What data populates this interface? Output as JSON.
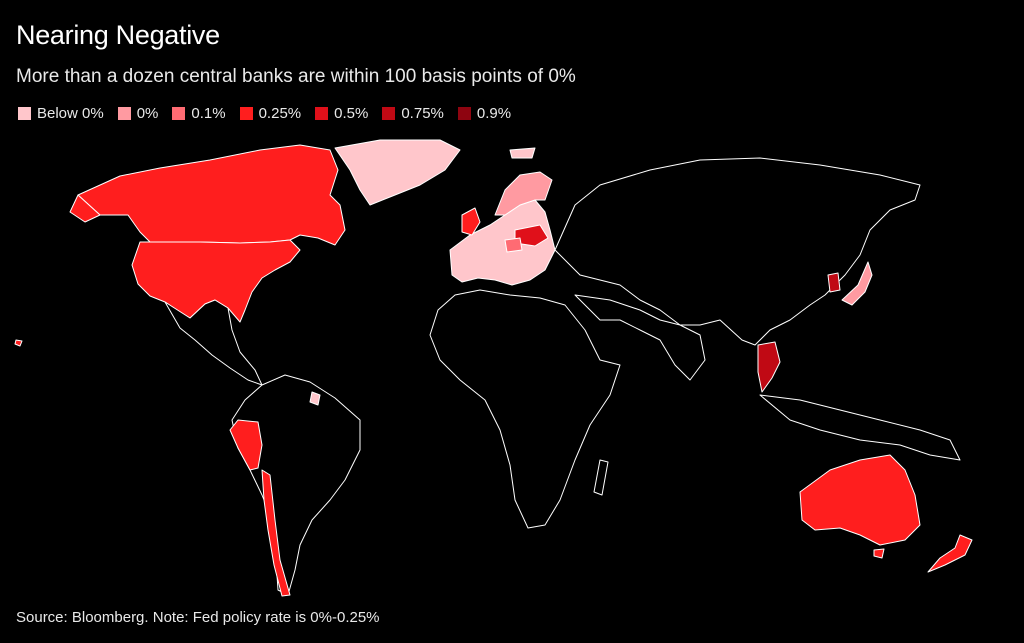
{
  "title": "Nearing Negative",
  "subtitle": "More than a dozen central banks are within 100 basis points of 0%",
  "legend": [
    {
      "label": "Below 0%",
      "color": "#ffc6cb"
    },
    {
      "label": "0%",
      "color": "#ff9aa1"
    },
    {
      "label": "0.1%",
      "color": "#ff6b73"
    },
    {
      "label": "0.25%",
      "color": "#ff1e1e"
    },
    {
      "label": "0.5%",
      "color": "#e0101a"
    },
    {
      "label": "0.75%",
      "color": "#c00914"
    },
    {
      "label": "0.9%",
      "color": "#8e0410"
    }
  ],
  "source": "Source: Bloomberg. Note: Fed policy rate is 0%-0.25%",
  "map_colors": {
    "land_fill": "#000000",
    "border": "#ffffff"
  }
}
